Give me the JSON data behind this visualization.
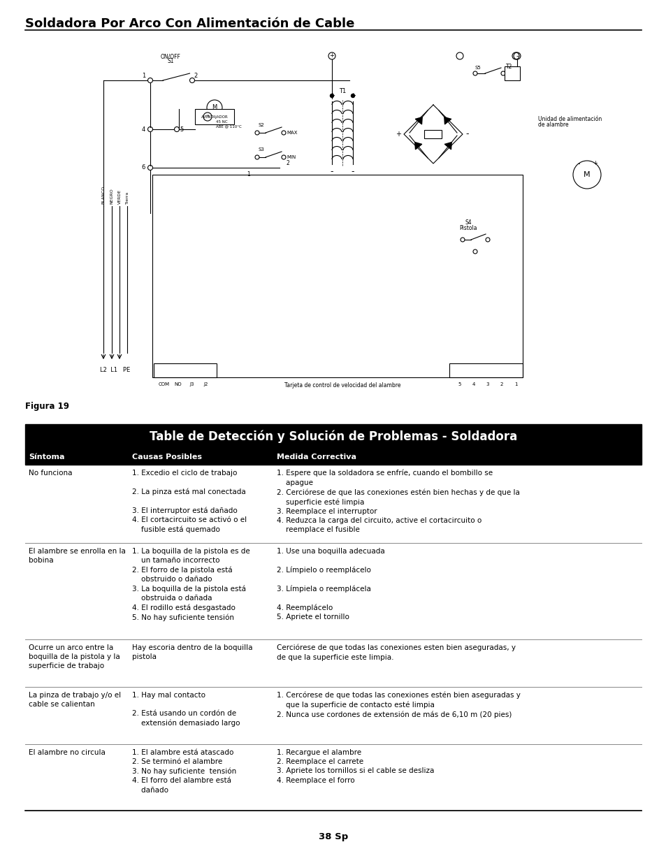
{
  "page_title": "Soldadora Por Arco Con Alimentación de Cable",
  "figure_label": "Figura 19",
  "table_title": "Table de Detección y Solución de Problemas - Soldadora",
  "col_headers": [
    "Síntoma",
    "Causas Posibles",
    "Medida Correctiva"
  ],
  "page_number": "38 Sp",
  "bg_color": "#ffffff",
  "rows": [
    {
      "symptom": "No funciona",
      "causes": "1. Excedio el ciclo de trabajo\n\n2. La pinza está mal conectada\n\n3. El interruptor está dañado\n4. El cortacircuito se activó o el\n    fusible está quemado",
      "corrective": "1. Espere que la soldadora se enfríe, cuando el bombillo se\n    apague\n2. Cerciórese de que las conexiones estén bien hechas y de que la\n    superficie esté limpia\n3. Reemplace el interruptor\n4. Reduzca la carga del circuito, active el cortacircuito o\n    reemplace el fusible"
    },
    {
      "symptom": "El alambre se enrolla en la\nbobina",
      "causes": "1. La boquilla de la pistola es de\n    un tamaño incorrecto\n2. El forro de la pistola está\n    obstruido o dañado\n3. La boquilla de la pistola está\n    obstruida o dañada\n4. El rodillo está desgastado\n5. No hay suficiente tensión",
      "corrective": "1. Use una boquilla adecuada\n\n2. Límpielo o reemplácelo\n\n3. Límpiela o reemplácela\n\n4. Reemplácelo\n5. Apriete el tornillo"
    },
    {
      "symptom": "Ocurre un arco entre la\nboquilla de la pistola y la\nsuperficie de trabajo",
      "causes": "Hay escoria dentro de la boquilla\npistola",
      "corrective": "Cerciórese de que todas las conexiones esten bien aseguradas, y\nde que la superficie este limpia."
    },
    {
      "symptom": "La pinza de trabajo y/o el\ncable se calientan",
      "causes": "1. Hay mal contacto\n\n2. Está usando un cordón de\n    extensión demasiado largo",
      "corrective": "1. Cercórese de que todas las conexiones estén bien aseguradas y\n    que la superficie de contacto esté limpia\n2. Nunca use cordones de extensión de más de 6,10 m (20 pies)"
    },
    {
      "symptom": "El alambre no circula",
      "causes": "1. El alambre está atascado\n2. Se terminó el alambre\n3. No hay suficiente  tensión\n4. El forro del alambre está\n    dañado",
      "corrective": "1. Recargue el alambre\n2. Reemplace el carrete\n3. Apriete los tornillos si el cable se desliza\n4. Reemplace el forro"
    }
  ]
}
